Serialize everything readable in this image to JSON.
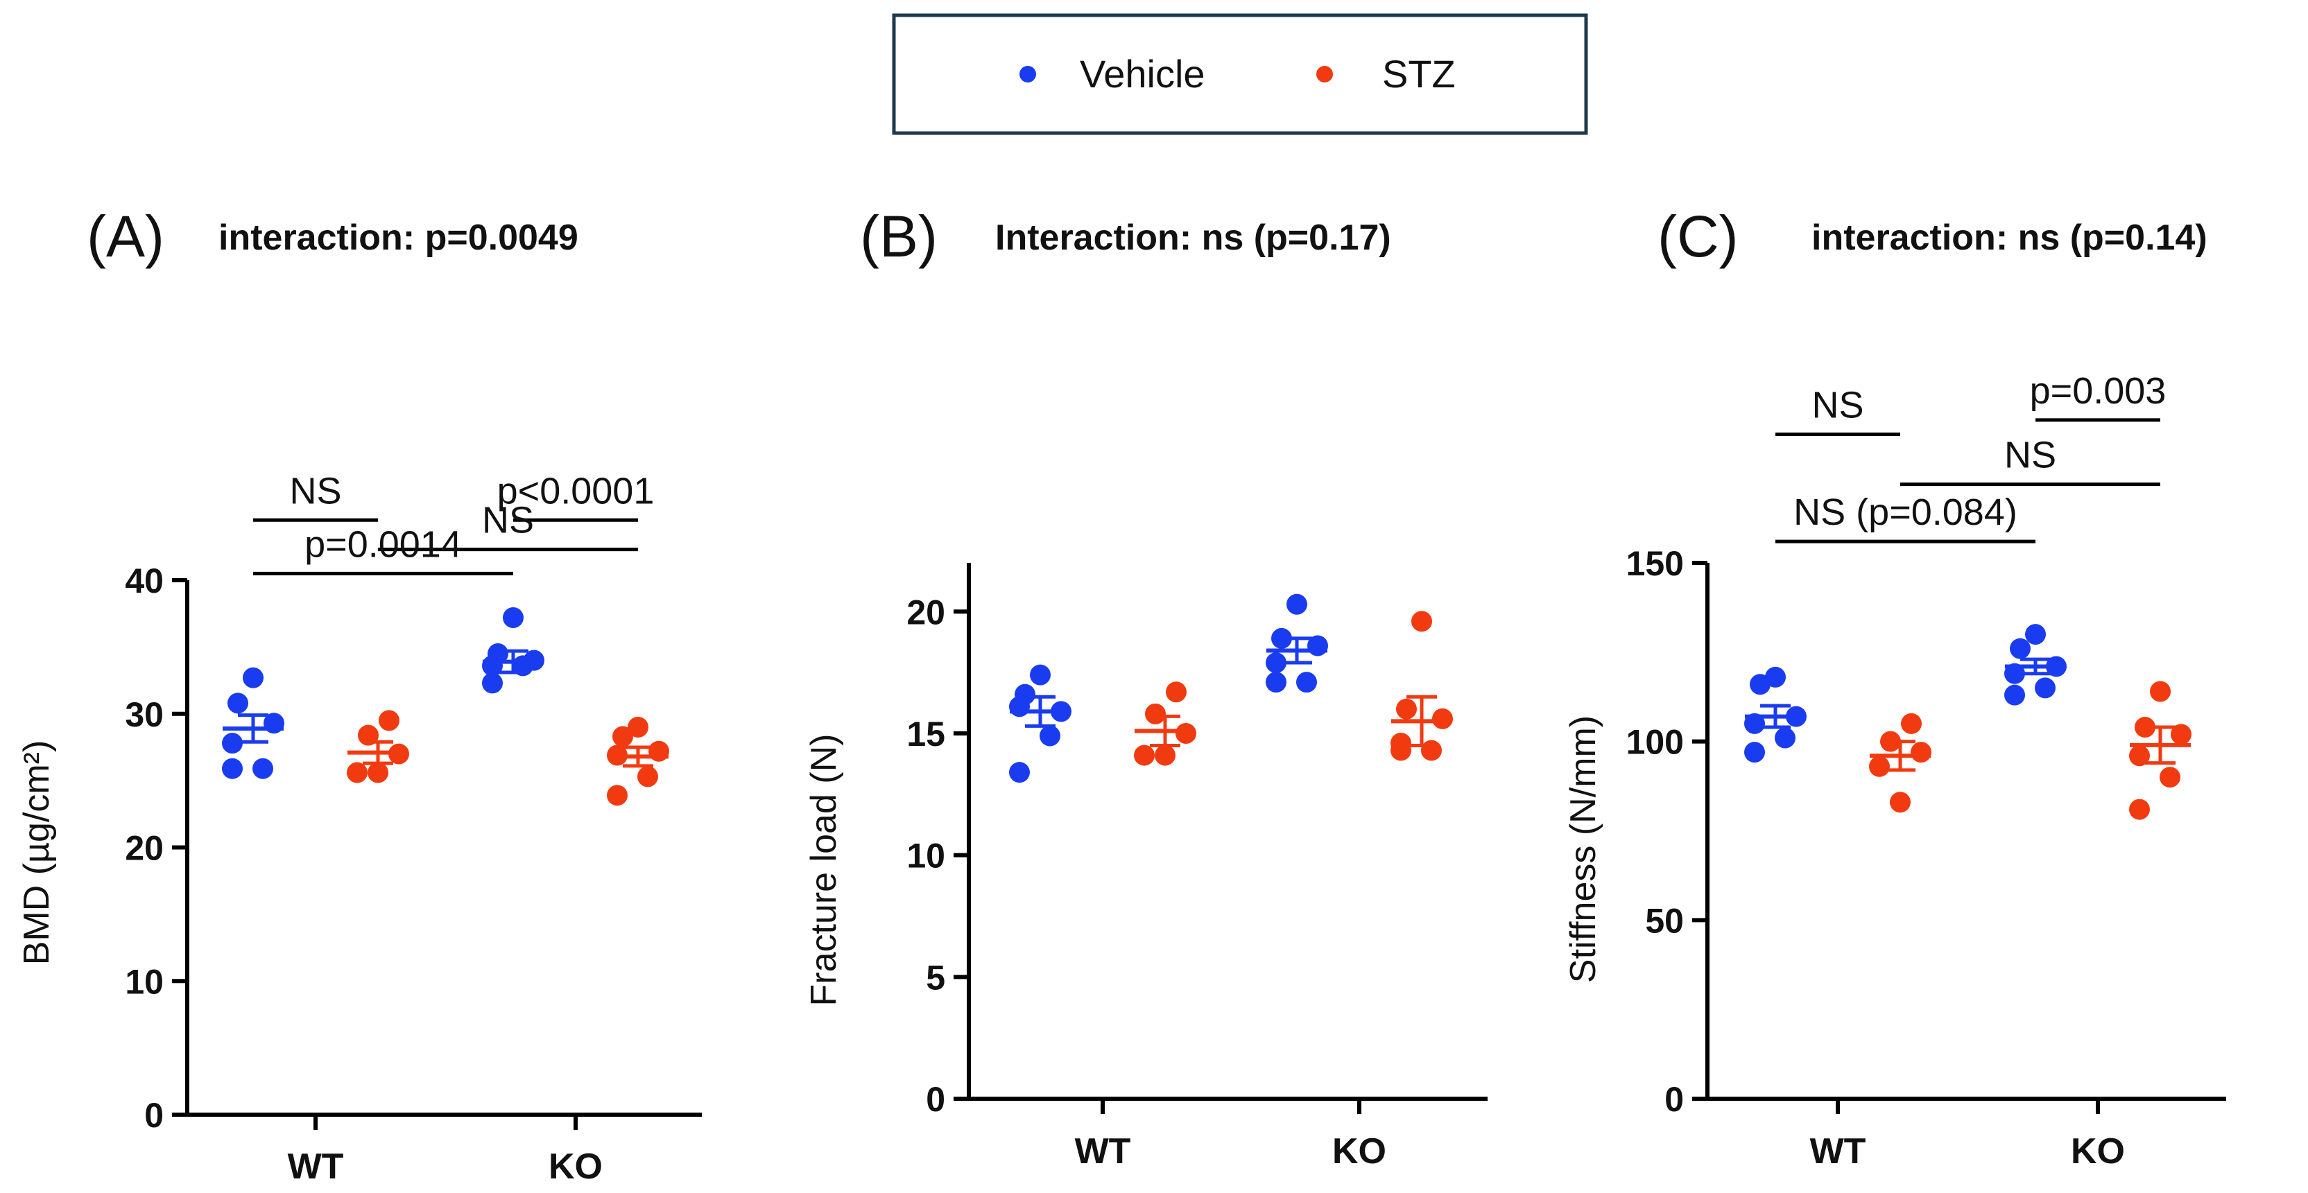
{
  "colors": {
    "vehicle": "#1a3cf0",
    "stz": "#f23a10",
    "axis": "#000000",
    "legend_border": "#1c3a4e"
  },
  "legend": {
    "entries": [
      {
        "label": "Vehicle",
        "series": "vehicle"
      },
      {
        "label": "STZ",
        "series": "stz"
      }
    ]
  },
  "chart_data": [
    {
      "type": "scatter",
      "panel": "(A)",
      "title": "interaction: p=0.0049",
      "ylabel": "BMD (µg/cm²)",
      "ylim": [
        0,
        40
      ],
      "yticks": [
        0,
        10,
        20,
        30,
        40
      ],
      "categories": [
        "WT",
        "KO"
      ],
      "series": [
        {
          "name": "Vehicle",
          "color": "vehicle",
          "groups": [
            {
              "category": "WT",
              "points": [
                32.7,
                30.8,
                29.3,
                27.8,
                25.9,
                25.9
              ],
              "mean": 28.9,
              "sem": 1.0
            },
            {
              "category": "KO",
              "points": [
                37.2,
                34.5,
                34.0,
                33.6,
                33.6,
                32.3
              ],
              "mean": 33.9,
              "sem": 0.8
            }
          ]
        },
        {
          "name": "STZ",
          "color": "stz",
          "groups": [
            {
              "category": "WT",
              "points": [
                29.5,
                28.4,
                27.0,
                25.6,
                25.6
              ],
              "mean": 27.1,
              "sem": 0.8
            },
            {
              "category": "KO",
              "points": [
                29.0,
                28.3,
                27.2,
                26.9,
                25.3,
                23.9
              ],
              "mean": 26.8,
              "sem": 0.7
            }
          ]
        }
      ],
      "annotations": [
        {
          "text": "NS",
          "from": "WT-Vehicle",
          "to": "WT-STZ",
          "level": 44.5
        },
        {
          "text": "p<0.0001",
          "from": "KO-Vehicle",
          "to": "KO-STZ",
          "level": 44.5
        },
        {
          "text": "NS",
          "from": "WT-STZ",
          "to": "KO-STZ",
          "level": 42.3
        },
        {
          "text": "p=0.0014",
          "from": "WT-Vehicle",
          "to": "KO-Vehicle",
          "level": 40.5
        }
      ]
    },
    {
      "type": "scatter",
      "panel": "(B)",
      "title": "Interaction: ns (p=0.17)",
      "ylabel": "Fracture load (N)",
      "ylim": [
        0,
        22
      ],
      "yticks": [
        0,
        5,
        10,
        15,
        20
      ],
      "categories": [
        "WT",
        "KO"
      ],
      "series": [
        {
          "name": "Vehicle",
          "color": "vehicle",
          "groups": [
            {
              "category": "WT",
              "points": [
                17.4,
                16.6,
                15.9,
                16.1,
                14.9,
                13.4
              ],
              "mean": 15.9,
              "sem": 0.6
            },
            {
              "category": "KO",
              "points": [
                20.3,
                18.9,
                18.6,
                17.9,
                17.1,
                17.1
              ],
              "mean": 18.4,
              "sem": 0.5
            }
          ]
        },
        {
          "name": "STZ",
          "color": "stz",
          "groups": [
            {
              "category": "WT",
              "points": [
                16.7,
                15.8,
                15.0,
                14.1,
                14.1
              ],
              "mean": 15.1,
              "sem": 0.6
            },
            {
              "category": "KO",
              "points": [
                19.6,
                16.0,
                15.6,
                14.6,
                14.3,
                14.3
              ],
              "mean": 15.5,
              "sem": 1.0
            }
          ]
        }
      ],
      "annotations": []
    },
    {
      "type": "scatter",
      "panel": "(C)",
      "title": "interaction: ns (p=0.14)",
      "ylabel": "Stiffness (N/mm)",
      "ylim": [
        0,
        150
      ],
      "yticks": [
        0,
        50,
        100,
        150
      ],
      "categories": [
        "WT",
        "KO"
      ],
      "series": [
        {
          "name": "Vehicle",
          "color": "vehicle",
          "groups": [
            {
              "category": "WT",
              "points": [
                118,
                116,
                107,
                105,
                101,
                97
              ],
              "mean": 107,
              "sem": 3
            },
            {
              "category": "KO",
              "points": [
                130,
                126,
                121,
                119,
                115,
                113
              ],
              "mean": 121,
              "sem": 2
            }
          ]
        },
        {
          "name": "STZ",
          "color": "stz",
          "groups": [
            {
              "category": "WT",
              "points": [
                105,
                100,
                97,
                93,
                83
              ],
              "mean": 96,
              "sem": 4
            },
            {
              "category": "KO",
              "points": [
                114,
                104,
                102,
                96,
                90,
                81
              ],
              "mean": 99,
              "sem": 5
            }
          ]
        }
      ],
      "annotations": [
        {
          "text": "NS",
          "from": "WT-Vehicle",
          "to": "WT-STZ",
          "level": 186
        },
        {
          "text": "p=0.003",
          "from": "KO-Vehicle",
          "to": "KO-STZ",
          "level": 190
        },
        {
          "text": "NS",
          "from": "WT-STZ",
          "to": "KO-STZ",
          "level": 172
        },
        {
          "text": "NS (p=0.084)",
          "from": "WT-Vehicle",
          "to": "KO-Vehicle",
          "level": 156
        }
      ]
    }
  ]
}
